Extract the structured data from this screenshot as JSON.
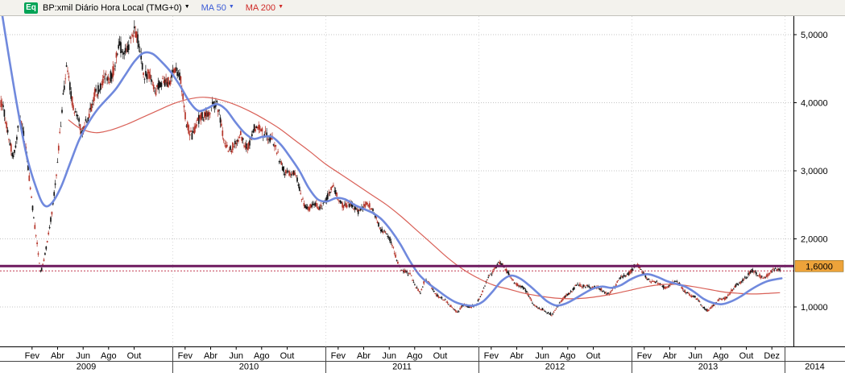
{
  "header": {
    "badge": "Eq",
    "title": "BP:xmil Diário Hora Local (TMG+0)",
    "ma50_label": "MA 50",
    "ma200_label": "MA 200",
    "caret": "▼",
    "colors": {
      "badge_bg": "#00a356",
      "badge_text": "#ffffff",
      "title": "#000000",
      "ma50": "#3b5bd6",
      "ma200": "#cf2a27"
    }
  },
  "chart_data": {
    "type": "candlestick",
    "instrument": "BP:xmil",
    "timeframe": "Diário",
    "timezone": "Hora Local (TMG+0)",
    "overlays": [
      {
        "name": "MA 50"
      },
      {
        "name": "MA 200"
      }
    ],
    "y_axis": {
      "min": 0.42,
      "max": 5.27,
      "ticks": [
        {
          "value": 5.0,
          "label": "5,0000"
        },
        {
          "value": 4.0,
          "label": "4,0000"
        },
        {
          "value": 3.0,
          "label": "3,0000"
        },
        {
          "value": 2.0,
          "label": "2,0000"
        },
        {
          "value": 1.0,
          "label": "1,0000"
        }
      ]
    },
    "x_axis": {
      "start": 2008.88,
      "end": 2013.97,
      "years": [
        {
          "year": 2009,
          "label": "2009",
          "months": [
            [
              "Fev",
              2
            ],
            [
              "Abr",
              4
            ],
            [
              "Jun",
              6
            ],
            [
              "Ago",
              8
            ],
            [
              "Out",
              10
            ]
          ]
        },
        {
          "year": 2010,
          "label": "2010",
          "months": [
            [
              "Fev",
              2
            ],
            [
              "Abr",
              4
            ],
            [
              "Jun",
              6
            ],
            [
              "Ago",
              8
            ],
            [
              "Out",
              10
            ]
          ]
        },
        {
          "year": 2011,
          "label": "2011",
          "months": [
            [
              "Fev",
              2
            ],
            [
              "Abr",
              4
            ],
            [
              "Jun",
              6
            ],
            [
              "Ago",
              8
            ],
            [
              "Out",
              10
            ]
          ]
        },
        {
          "year": 2012,
          "label": "2012",
          "months": [
            [
              "Fev",
              2
            ],
            [
              "Abr",
              4
            ],
            [
              "Jun",
              6
            ],
            [
              "Ago",
              8
            ],
            [
              "Out",
              10
            ]
          ]
        },
        {
          "year": 2013,
          "label": "2013",
          "months": [
            [
              "Fev",
              2
            ],
            [
              "Abr",
              4
            ],
            [
              "Jun",
              6
            ],
            [
              "Ago",
              8
            ],
            [
              "Out",
              10
            ],
            [
              "Dez",
              12
            ]
          ]
        },
        {
          "year": 2014,
          "label": "2014",
          "months": []
        }
      ]
    },
    "price_level": {
      "value": 1.6,
      "label": "1,6000"
    },
    "dotted_level": {
      "value": 1.53
    },
    "colors": {
      "background": "#ffffff",
      "grid": "#c4c4c4",
      "grid_v": "#d8d8d8",
      "axis": "#000000",
      "up_candle": "#141414",
      "down_candle": "#b5362b",
      "ma50_line": "#7089dd",
      "ma200_line": "#d96057",
      "level_line": "#6e1a5f",
      "dotted_line": "#c43a50",
      "level_label_bg": "#eda33a",
      "level_label_text": "#000000"
    },
    "price_anchors": [
      [
        2008.88,
        3.95
      ],
      [
        2008.92,
        3.55
      ],
      [
        2008.96,
        3.25
      ],
      [
        2009.0,
        3.85
      ],
      [
        2009.04,
        3.35
      ],
      [
        2009.08,
        2.65
      ],
      [
        2009.11,
        2.1
      ],
      [
        2009.14,
        1.48
      ],
      [
        2009.17,
        1.75
      ],
      [
        2009.2,
        2.2
      ],
      [
        2009.24,
        2.9
      ],
      [
        2009.28,
        3.8
      ],
      [
        2009.31,
        4.5
      ],
      [
        2009.34,
        4.15
      ],
      [
        2009.38,
        3.8
      ],
      [
        2009.41,
        3.5
      ],
      [
        2009.45,
        3.85
      ],
      [
        2009.49,
        4.25
      ],
      [
        2009.53,
        4.15
      ],
      [
        2009.57,
        4.35
      ],
      [
        2009.61,
        4.5
      ],
      [
        2009.65,
        4.72
      ],
      [
        2009.68,
        4.55
      ],
      [
        2009.72,
        4.95
      ],
      [
        2009.75,
        5.12
      ],
      [
        2009.78,
        4.8
      ],
      [
        2009.81,
        4.4
      ],
      [
        2009.85,
        4.6
      ],
      [
        2009.89,
        4.15
      ],
      [
        2009.93,
        4.25
      ],
      [
        2009.97,
        4.4
      ],
      [
        2010.01,
        4.45
      ],
      [
        2010.05,
        4.25
      ],
      [
        2010.09,
        3.75
      ],
      [
        2010.13,
        3.5
      ],
      [
        2010.17,
        3.65
      ],
      [
        2010.21,
        3.9
      ],
      [
        2010.25,
        4.0
      ],
      [
        2010.29,
        3.95
      ],
      [
        2010.33,
        3.6
      ],
      [
        2010.37,
        3.35
      ],
      [
        2010.41,
        3.3
      ],
      [
        2010.45,
        3.5
      ],
      [
        2010.49,
        3.35
      ],
      [
        2010.53,
        3.5
      ],
      [
        2010.57,
        3.6
      ],
      [
        2010.61,
        3.65
      ],
      [
        2010.65,
        3.45
      ],
      [
        2010.69,
        3.25
      ],
      [
        2010.73,
        3.1
      ],
      [
        2010.77,
        2.95
      ],
      [
        2010.81,
        2.85
      ],
      [
        2010.85,
        2.6
      ],
      [
        2010.89,
        2.4
      ],
      [
        2010.93,
        2.42
      ],
      [
        2010.97,
        2.5
      ],
      [
        2011.01,
        2.6
      ],
      [
        2011.05,
        2.75
      ],
      [
        2011.09,
        2.62
      ],
      [
        2011.13,
        2.55
      ],
      [
        2011.17,
        2.45
      ],
      [
        2011.21,
        2.42
      ],
      [
        2011.25,
        2.52
      ],
      [
        2011.29,
        2.4
      ],
      [
        2011.33,
        2.28
      ],
      [
        2011.37,
        2.15
      ],
      [
        2011.41,
        2.0
      ],
      [
        2011.44,
        1.88
      ],
      [
        2011.47,
        1.7
      ],
      [
        2011.5,
        1.58
      ],
      [
        2011.53,
        1.5
      ],
      [
        2011.56,
        1.44
      ],
      [
        2011.59,
        1.32
      ],
      [
        2011.62,
        1.24
      ],
      [
        2011.65,
        1.38
      ],
      [
        2011.68,
        1.3
      ],
      [
        2011.71,
        1.22
      ],
      [
        2011.75,
        1.14
      ],
      [
        2011.79,
        1.06
      ],
      [
        2011.83,
        0.98
      ],
      [
        2011.86,
        0.95
      ],
      [
        2011.9,
        1.04
      ],
      [
        2011.94,
        0.99
      ],
      [
        2011.98,
        1.06
      ],
      [
        2012.02,
        1.18
      ],
      [
        2012.06,
        1.38
      ],
      [
        2012.1,
        1.55
      ],
      [
        2012.13,
        1.66
      ],
      [
        2012.16,
        1.55
      ],
      [
        2012.2,
        1.46
      ],
      [
        2012.24,
        1.38
      ],
      [
        2012.28,
        1.3
      ],
      [
        2012.32,
        1.2
      ],
      [
        2012.36,
        1.08
      ],
      [
        2012.4,
        0.98
      ],
      [
        2012.44,
        0.92
      ],
      [
        2012.48,
        0.9
      ],
      [
        2012.52,
        1.0
      ],
      [
        2012.56,
        1.1
      ],
      [
        2012.6,
        1.22
      ],
      [
        2012.64,
        1.33
      ],
      [
        2012.68,
        1.28
      ],
      [
        2012.72,
        1.34
      ],
      [
        2012.76,
        1.32
      ],
      [
        2012.8,
        1.24
      ],
      [
        2012.84,
        1.2
      ],
      [
        2012.88,
        1.28
      ],
      [
        2012.92,
        1.36
      ],
      [
        2012.96,
        1.44
      ],
      [
        2013.0,
        1.55
      ],
      [
        2013.03,
        1.62
      ],
      [
        2013.06,
        1.52
      ],
      [
        2013.1,
        1.46
      ],
      [
        2013.14,
        1.4
      ],
      [
        2013.18,
        1.33
      ],
      [
        2013.22,
        1.3
      ],
      [
        2013.26,
        1.36
      ],
      [
        2013.3,
        1.32
      ],
      [
        2013.34,
        1.25
      ],
      [
        2013.38,
        1.18
      ],
      [
        2013.42,
        1.1
      ],
      [
        2013.46,
        1.02
      ],
      [
        2013.5,
        0.97
      ],
      [
        2013.54,
        1.03
      ],
      [
        2013.58,
        1.12
      ],
      [
        2013.62,
        1.18
      ],
      [
        2013.66,
        1.24
      ],
      [
        2013.7,
        1.32
      ],
      [
        2013.74,
        1.44
      ],
      [
        2013.78,
        1.5
      ],
      [
        2013.82,
        1.44
      ],
      [
        2013.86,
        1.46
      ],
      [
        2013.9,
        1.5
      ],
      [
        2013.94,
        1.54
      ],
      [
        2013.97,
        1.57
      ]
    ],
    "ma50_anchors": [
      [
        2008.87,
        5.55
      ],
      [
        2008.93,
        4.7
      ],
      [
        2008.99,
        3.9
      ],
      [
        2009.05,
        3.2
      ],
      [
        2009.11,
        2.75
      ],
      [
        2009.16,
        2.5
      ],
      [
        2009.21,
        2.52
      ],
      [
        2009.27,
        2.75
      ],
      [
        2009.33,
        3.1
      ],
      [
        2009.39,
        3.45
      ],
      [
        2009.45,
        3.7
      ],
      [
        2009.51,
        3.9
      ],
      [
        2009.57,
        4.05
      ],
      [
        2009.63,
        4.2
      ],
      [
        2009.69,
        4.4
      ],
      [
        2009.75,
        4.6
      ],
      [
        2009.81,
        4.73
      ],
      [
        2009.87,
        4.72
      ],
      [
        2009.93,
        4.6
      ],
      [
        2009.99,
        4.45
      ],
      [
        2010.05,
        4.25
      ],
      [
        2010.11,
        4.02
      ],
      [
        2010.17,
        3.88
      ],
      [
        2010.23,
        3.92
      ],
      [
        2010.29,
        3.98
      ],
      [
        2010.35,
        3.9
      ],
      [
        2010.41,
        3.72
      ],
      [
        2010.47,
        3.56
      ],
      [
        2010.53,
        3.47
      ],
      [
        2010.59,
        3.5
      ],
      [
        2010.65,
        3.5
      ],
      [
        2010.71,
        3.38
      ],
      [
        2010.77,
        3.2
      ],
      [
        2010.83,
        3.0
      ],
      [
        2010.89,
        2.75
      ],
      [
        2010.95,
        2.58
      ],
      [
        2011.01,
        2.55
      ],
      [
        2011.07,
        2.6
      ],
      [
        2011.13,
        2.58
      ],
      [
        2011.19,
        2.5
      ],
      [
        2011.25,
        2.44
      ],
      [
        2011.31,
        2.38
      ],
      [
        2011.37,
        2.28
      ],
      [
        2011.43,
        2.12
      ],
      [
        2011.49,
        1.92
      ],
      [
        2011.55,
        1.68
      ],
      [
        2011.61,
        1.48
      ],
      [
        2011.67,
        1.35
      ],
      [
        2011.73,
        1.25
      ],
      [
        2011.79,
        1.15
      ],
      [
        2011.85,
        1.07
      ],
      [
        2011.91,
        1.03
      ],
      [
        2011.97,
        1.02
      ],
      [
        2012.03,
        1.08
      ],
      [
        2012.09,
        1.22
      ],
      [
        2012.15,
        1.38
      ],
      [
        2012.21,
        1.46
      ],
      [
        2012.27,
        1.42
      ],
      [
        2012.33,
        1.32
      ],
      [
        2012.39,
        1.2
      ],
      [
        2012.45,
        1.08
      ],
      [
        2012.51,
        1.02
      ],
      [
        2012.57,
        1.05
      ],
      [
        2012.63,
        1.12
      ],
      [
        2012.69,
        1.2
      ],
      [
        2012.75,
        1.27
      ],
      [
        2012.81,
        1.3
      ],
      [
        2012.87,
        1.28
      ],
      [
        2012.93,
        1.32
      ],
      [
        2012.99,
        1.4
      ],
      [
        2013.05,
        1.46
      ],
      [
        2013.11,
        1.48
      ],
      [
        2013.17,
        1.44
      ],
      [
        2013.23,
        1.38
      ],
      [
        2013.29,
        1.34
      ],
      [
        2013.35,
        1.3
      ],
      [
        2013.41,
        1.22
      ],
      [
        2013.47,
        1.12
      ],
      [
        2013.53,
        1.06
      ],
      [
        2013.59,
        1.04
      ],
      [
        2013.65,
        1.08
      ],
      [
        2013.71,
        1.15
      ],
      [
        2013.77,
        1.24
      ],
      [
        2013.83,
        1.32
      ],
      [
        2013.89,
        1.38
      ],
      [
        2013.95,
        1.41
      ],
      [
        2013.98,
        1.42
      ]
    ],
    "ma200_anchors": [
      [
        2009.32,
        3.75
      ],
      [
        2009.4,
        3.62
      ],
      [
        2009.5,
        3.56
      ],
      [
        2009.6,
        3.6
      ],
      [
        2009.7,
        3.68
      ],
      [
        2009.8,
        3.78
      ],
      [
        2009.9,
        3.88
      ],
      [
        2010.0,
        3.98
      ],
      [
        2010.1,
        4.05
      ],
      [
        2010.2,
        4.08
      ],
      [
        2010.3,
        4.05
      ],
      [
        2010.4,
        3.98
      ],
      [
        2010.5,
        3.88
      ],
      [
        2010.6,
        3.76
      ],
      [
        2010.7,
        3.62
      ],
      [
        2010.8,
        3.45
      ],
      [
        2010.9,
        3.28
      ],
      [
        2011.0,
        3.1
      ],
      [
        2011.1,
        2.95
      ],
      [
        2011.2,
        2.8
      ],
      [
        2011.3,
        2.65
      ],
      [
        2011.4,
        2.5
      ],
      [
        2011.5,
        2.32
      ],
      [
        2011.6,
        2.12
      ],
      [
        2011.7,
        1.92
      ],
      [
        2011.8,
        1.72
      ],
      [
        2011.9,
        1.55
      ],
      [
        2012.0,
        1.42
      ],
      [
        2012.1,
        1.32
      ],
      [
        2012.2,
        1.26
      ],
      [
        2012.3,
        1.2
      ],
      [
        2012.4,
        1.16
      ],
      [
        2012.5,
        1.13
      ],
      [
        2012.6,
        1.12
      ],
      [
        2012.7,
        1.13
      ],
      [
        2012.8,
        1.16
      ],
      [
        2012.9,
        1.2
      ],
      [
        2013.0,
        1.25
      ],
      [
        2013.1,
        1.3
      ],
      [
        2013.2,
        1.33
      ],
      [
        2013.3,
        1.33
      ],
      [
        2013.4,
        1.3
      ],
      [
        2013.5,
        1.26
      ],
      [
        2013.6,
        1.22
      ],
      [
        2013.7,
        1.2
      ],
      [
        2013.8,
        1.19
      ],
      [
        2013.9,
        1.2
      ],
      [
        2013.97,
        1.21
      ]
    ]
  }
}
